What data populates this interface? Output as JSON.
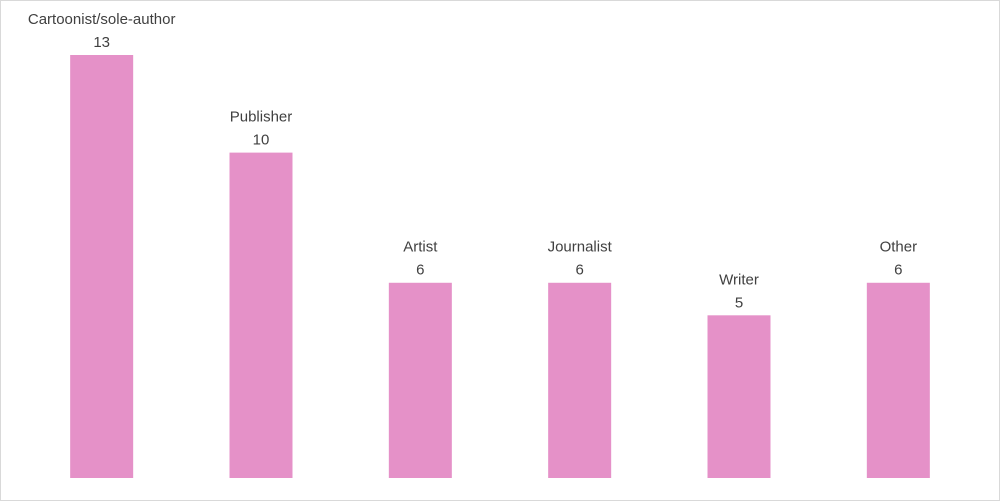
{
  "chart_data": {
    "type": "bar",
    "categories": [
      "Cartoonist/sole-author",
      "Publisher",
      "Artist",
      "Journalist",
      "Writer",
      "Other"
    ],
    "values": [
      13,
      10,
      6,
      6,
      5,
      6
    ],
    "color": "#e591c8"
  }
}
